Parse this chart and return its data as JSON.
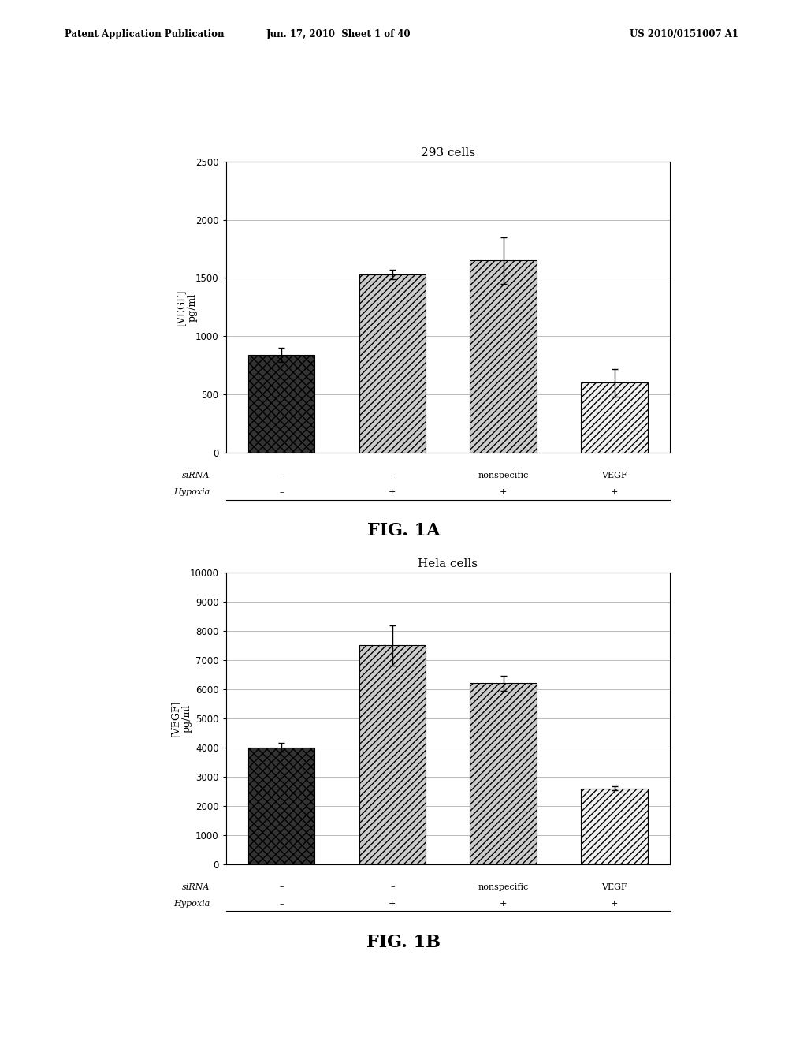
{
  "fig1a": {
    "title": "293 cells",
    "bars": [
      {
        "label_sirna": "–",
        "label_hypoxia": "–",
        "value": 840,
        "error": 60,
        "pattern": "dense_dark"
      },
      {
        "label_sirna": "–",
        "label_hypoxia": "+",
        "value": 1530,
        "error": 40,
        "pattern": "hatch_medium"
      },
      {
        "label_sirna": "nonspecific",
        "label_hypoxia": "+",
        "value": 1650,
        "error": 200,
        "pattern": "hatch_medium"
      },
      {
        "label_sirna": "VEGF",
        "label_hypoxia": "+",
        "value": 600,
        "error": 120,
        "pattern": "hatch_light"
      }
    ],
    "ylim": [
      0,
      2500
    ],
    "yticks": [
      0,
      500,
      1000,
      1500,
      2000,
      2500
    ],
    "ylabel": "[VEGF]\npg/ml",
    "fig_label": "FIG. 1A",
    "sirna_row": [
      "siRNA",
      "–",
      "–",
      "nonspecific",
      "VEGF"
    ],
    "hypoxia_row": [
      "Hypoxia",
      "–",
      "+",
      "+",
      "+"
    ]
  },
  "fig1b": {
    "title": "Hela cells",
    "bars": [
      {
        "label_sirna": "–",
        "label_hypoxia": "–",
        "value": 4000,
        "error": 150,
        "pattern": "dense_dark"
      },
      {
        "label_sirna": "–",
        "label_hypoxia": "+",
        "value": 7500,
        "error": 700,
        "pattern": "hatch_medium"
      },
      {
        "label_sirna": "nonspecific",
        "label_hypoxia": "+",
        "value": 6200,
        "error": 250,
        "pattern": "hatch_medium"
      },
      {
        "label_sirna": "VEGF",
        "label_hypoxia": "+",
        "value": 2600,
        "error": 80,
        "pattern": "hatch_light"
      }
    ],
    "ylim": [
      0,
      10000
    ],
    "yticks": [
      0,
      1000,
      2000,
      3000,
      4000,
      5000,
      6000,
      7000,
      8000,
      9000,
      10000
    ],
    "ylabel": "[VEGF]\npg/ml",
    "fig_label": "FIG. 1B",
    "sirna_row": [
      "siRNA",
      "–",
      "–",
      "nonspecific",
      "VEGF"
    ],
    "hypoxia_row": [
      "Hypoxia",
      "–",
      "+",
      "+",
      "+"
    ]
  },
  "header_left": "Patent Application Publication",
  "header_mid": "Jun. 17, 2010  Sheet 1 of 40",
  "header_right": "US 2010/0151007 A1",
  "background_color": "#ffffff",
  "bar_width": 0.6
}
